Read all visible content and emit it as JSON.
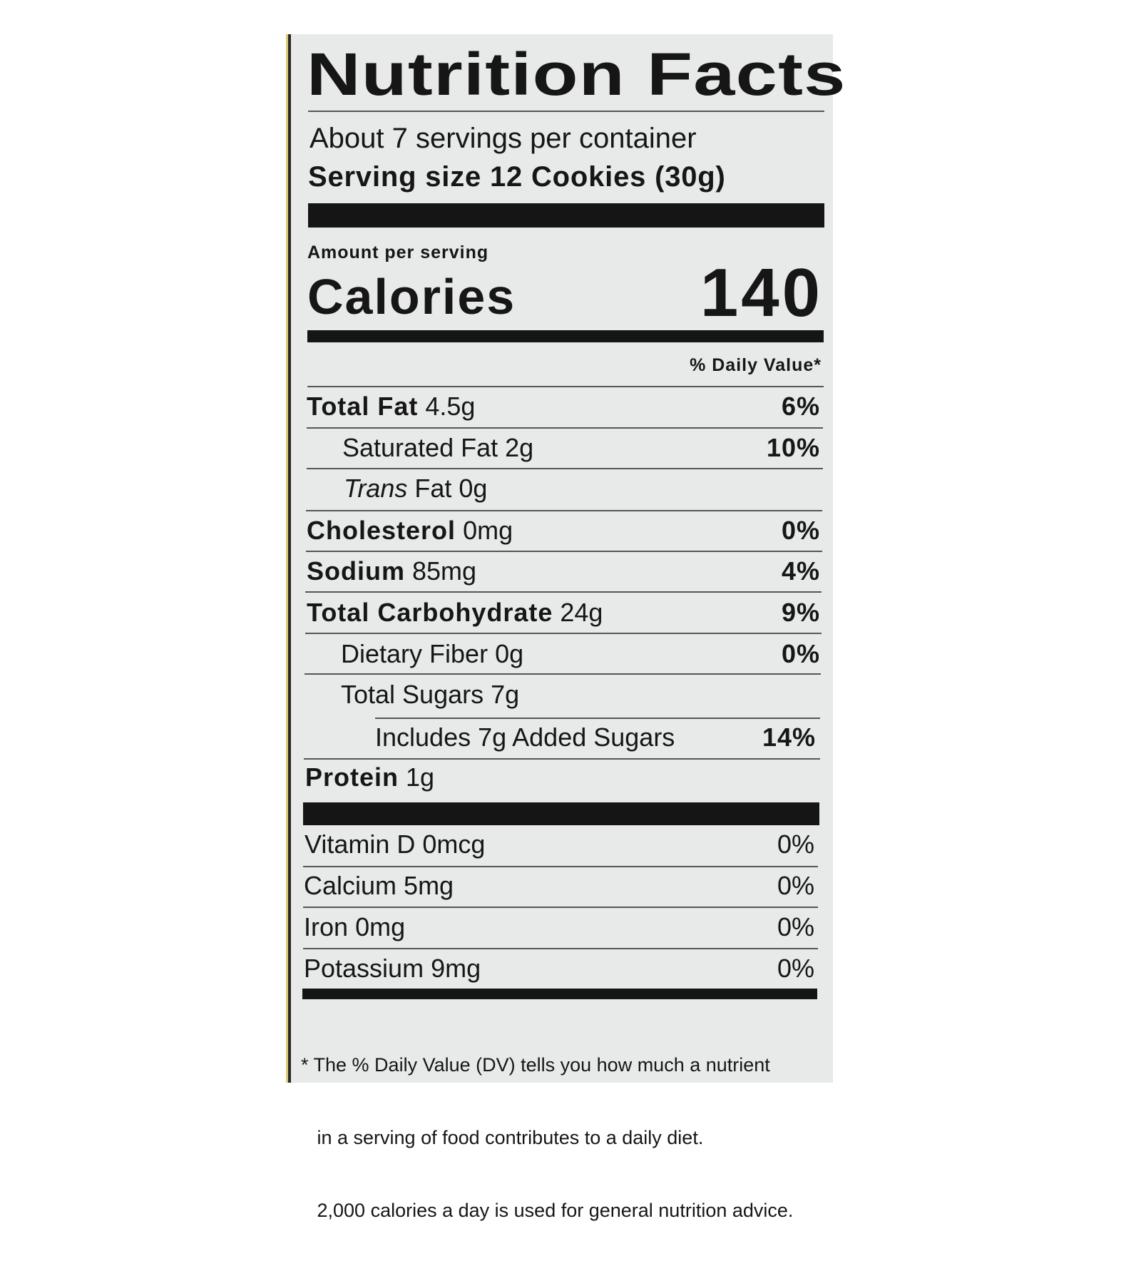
{
  "title": "Nutrition Facts",
  "servings_per_container": "About 7 servings per container",
  "serving_size_label": "Serving size",
  "serving_size_value": "12 Cookies (30g)",
  "amount_per_serving": "Amount per serving",
  "calories_label": "Calories",
  "calories_value": "140",
  "daily_value_header": "% Daily Value*",
  "nutrients": [
    {
      "name": "Total Fat",
      "amount": "4.5g",
      "dv": "6%"
    },
    {
      "name": "Saturated Fat",
      "amount": "2g",
      "dv": "10%"
    },
    {
      "name_italic": "Trans",
      "name": "Fat",
      "amount": "0g",
      "dv": ""
    },
    {
      "name": "Cholesterol",
      "amount": "0mg",
      "dv": "0%"
    },
    {
      "name": "Sodium",
      "amount": "85mg",
      "dv": "4%"
    },
    {
      "name": "Total Carbohydrate",
      "amount": "24g",
      "dv": "9%"
    },
    {
      "name": "Dietary Fiber",
      "amount": "0g",
      "dv": "0%"
    },
    {
      "name": "Total Sugars",
      "amount": "7g",
      "dv": ""
    },
    {
      "name": "Includes 7g Added Sugars",
      "amount": "",
      "dv": "14%"
    },
    {
      "name": "Protein",
      "amount": "1g",
      "dv": ""
    }
  ],
  "vitamins": [
    {
      "name": "Vitamin D",
      "amount": "0mcg",
      "dv": "0%"
    },
    {
      "name": "Calcium",
      "amount": "5mg",
      "dv": "0%"
    },
    {
      "name": "Iron",
      "amount": "0mg",
      "dv": "0%"
    },
    {
      "name": "Potassium",
      "amount": "9mg",
      "dv": "0%"
    }
  ],
  "footnote": {
    "line1": "* The % Daily Value (DV) tells you how much a nutrient",
    "line2": "   in a serving of food contributes to a daily diet.",
    "line3": "   2,000 calories a day is used for general nutrition advice."
  }
}
